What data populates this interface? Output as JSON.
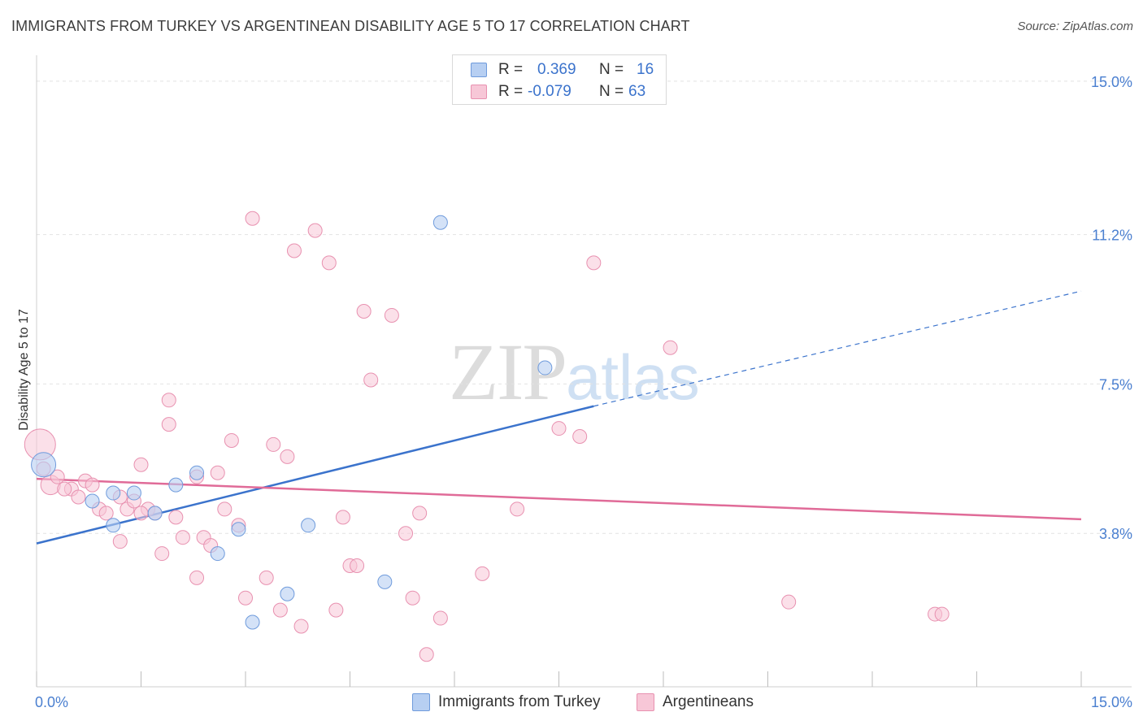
{
  "header": {
    "title": "IMMIGRANTS FROM TURKEY VS ARGENTINEAN DISABILITY AGE 5 TO 17 CORRELATION CHART",
    "source": "Source: ZipAtlas.com"
  },
  "watermark": {
    "zip": "ZIP",
    "atlas": "atlas"
  },
  "legend": {
    "rows": [
      {
        "r_label": "R =",
        "r_value": "0.369",
        "n_label": "N =",
        "n_value": "16",
        "fill": "#b7cff2",
        "stroke": "#6f9bdc"
      },
      {
        "r_label": "R =",
        "r_value": "-0.079",
        "n_label": "N =",
        "n_value": "63",
        "fill": "#f7c7d7",
        "stroke": "#e891b0"
      }
    ]
  },
  "bottom_legend": {
    "items": [
      {
        "label": "Immigrants from Turkey",
        "fill": "#b7cff2",
        "stroke": "#6f9bdc"
      },
      {
        "label": "Argentineans",
        "fill": "#f7c7d7",
        "stroke": "#e891b0"
      }
    ]
  },
  "chart_data": {
    "type": "scatter",
    "title": "IMMIGRANTS FROM TURKEY VS ARGENTINEAN DISABILITY AGE 5 TO 17 CORRELATION CHART",
    "ylabel": "Disability Age 5 to 17",
    "xlabel": "",
    "xlim": [
      0,
      15
    ],
    "ylim": [
      0,
      15.5
    ],
    "x_tick_labels": [
      "0.0%",
      "15.0%"
    ],
    "y_ticks": [
      3.8,
      7.5,
      11.2,
      15.0
    ],
    "y_tick_labels": [
      "3.8%",
      "7.5%",
      "11.2%",
      "15.0%"
    ],
    "grid": "horizontal dashed",
    "legend_placement": "top-center",
    "colors": {
      "turkey": "#3b73cc",
      "argentineans": "#e06b98"
    },
    "series": [
      {
        "name": "Immigrants from Turkey",
        "points": [
          [
            0.1,
            5.5
          ],
          [
            0.8,
            4.6
          ],
          [
            1.1,
            4.8
          ],
          [
            1.1,
            4.0
          ],
          [
            1.4,
            4.8
          ],
          [
            1.7,
            4.3
          ],
          [
            2.0,
            5.0
          ],
          [
            2.3,
            5.3
          ],
          [
            2.6,
            3.3
          ],
          [
            2.9,
            3.9
          ],
          [
            3.1,
            1.6
          ],
          [
            3.6,
            2.3
          ],
          [
            3.9,
            4.0
          ],
          [
            5.0,
            2.6
          ],
          [
            5.8,
            11.5
          ],
          [
            7.3,
            7.9
          ]
        ],
        "trend": {
          "x0": 0,
          "y0": 3.55,
          "x1": 8.0,
          "y1": 6.95,
          "dashed_to": [
            15,
            9.8
          ]
        }
      },
      {
        "name": "Argentineans",
        "points": [
          [
            0.05,
            6.0
          ],
          [
            0.2,
            5.0
          ],
          [
            0.3,
            5.2
          ],
          [
            0.5,
            4.9
          ],
          [
            0.6,
            4.7
          ],
          [
            0.7,
            5.1
          ],
          [
            0.8,
            5.0
          ],
          [
            0.9,
            4.4
          ],
          [
            1.0,
            4.3
          ],
          [
            1.2,
            3.6
          ],
          [
            1.2,
            4.7
          ],
          [
            1.3,
            4.4
          ],
          [
            1.4,
            4.6
          ],
          [
            1.5,
            5.5
          ],
          [
            1.6,
            4.4
          ],
          [
            1.7,
            4.3
          ],
          [
            1.8,
            3.3
          ],
          [
            1.9,
            7.1
          ],
          [
            1.9,
            6.5
          ],
          [
            2.0,
            4.2
          ],
          [
            2.1,
            3.7
          ],
          [
            2.3,
            5.2
          ],
          [
            2.3,
            2.7
          ],
          [
            2.4,
            3.7
          ],
          [
            2.5,
            3.5
          ],
          [
            2.6,
            5.3
          ],
          [
            2.7,
            4.4
          ],
          [
            2.8,
            6.1
          ],
          [
            2.9,
            4.0
          ],
          [
            3.0,
            2.2
          ],
          [
            3.1,
            11.6
          ],
          [
            3.3,
            2.7
          ],
          [
            3.4,
            6.0
          ],
          [
            3.5,
            1.9
          ],
          [
            3.6,
            5.7
          ],
          [
            3.7,
            10.8
          ],
          [
            3.8,
            1.5
          ],
          [
            4.0,
            11.3
          ],
          [
            4.2,
            10.5
          ],
          [
            4.3,
            1.9
          ],
          [
            4.4,
            4.2
          ],
          [
            4.5,
            3.0
          ],
          [
            4.6,
            3.0
          ],
          [
            4.7,
            9.3
          ],
          [
            4.8,
            7.6
          ],
          [
            5.1,
            9.2
          ],
          [
            5.3,
            3.8
          ],
          [
            5.4,
            2.2
          ],
          [
            5.5,
            4.3
          ],
          [
            5.6,
            0.8
          ],
          [
            5.8,
            1.7
          ],
          [
            6.4,
            2.8
          ],
          [
            6.9,
            4.4
          ],
          [
            7.5,
            6.4
          ],
          [
            7.8,
            6.2
          ],
          [
            8.0,
            10.5
          ],
          [
            9.1,
            8.4
          ],
          [
            10.8,
            2.1
          ],
          [
            12.9,
            1.8
          ],
          [
            13.0,
            1.8
          ],
          [
            0.1,
            5.4
          ],
          [
            0.4,
            4.9
          ],
          [
            1.5,
            4.3
          ]
        ],
        "trend": {
          "x0": 0,
          "y0": 5.15,
          "x1": 15,
          "y1": 4.15
        }
      }
    ]
  }
}
